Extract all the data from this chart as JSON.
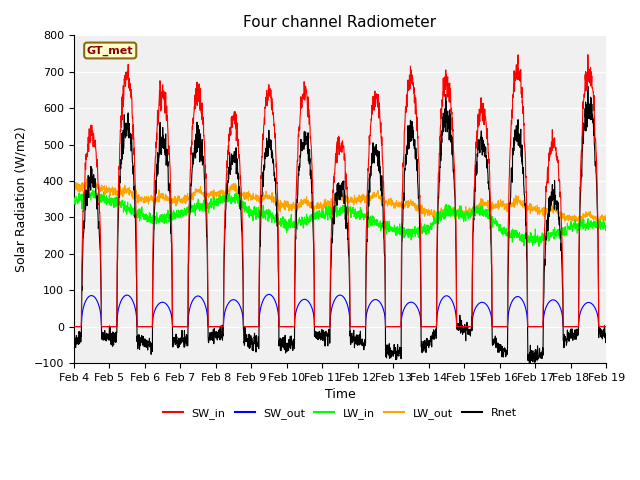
{
  "title": "Four channel Radiometer",
  "xlabel": "Time",
  "ylabel": "Solar Radiation (W/m2)",
  "annotation": "GT_met",
  "ylim": [
    -100,
    800
  ],
  "yticks": [
    -100,
    0,
    100,
    200,
    300,
    400,
    500,
    600,
    700,
    800
  ],
  "xtick_labels": [
    "Feb 4",
    "Feb 5",
    "Feb 6",
    "Feb 7",
    "Feb 8",
    "Feb 9",
    "Feb 10",
    "Feb 11",
    "Feb 12",
    "Feb 13",
    "Feb 14",
    "Feb 15",
    "Feb 16",
    "Feb 17",
    "Feb 18",
    "Feb 19"
  ],
  "colors": {
    "SW_in": "#ff0000",
    "SW_out": "#0000ff",
    "LW_in": "#00ff00",
    "LW_out": "#ffa500",
    "Rnet": "#000000"
  },
  "bg_color": "#f0f0f0",
  "n_days": 15,
  "lw": 0.8
}
